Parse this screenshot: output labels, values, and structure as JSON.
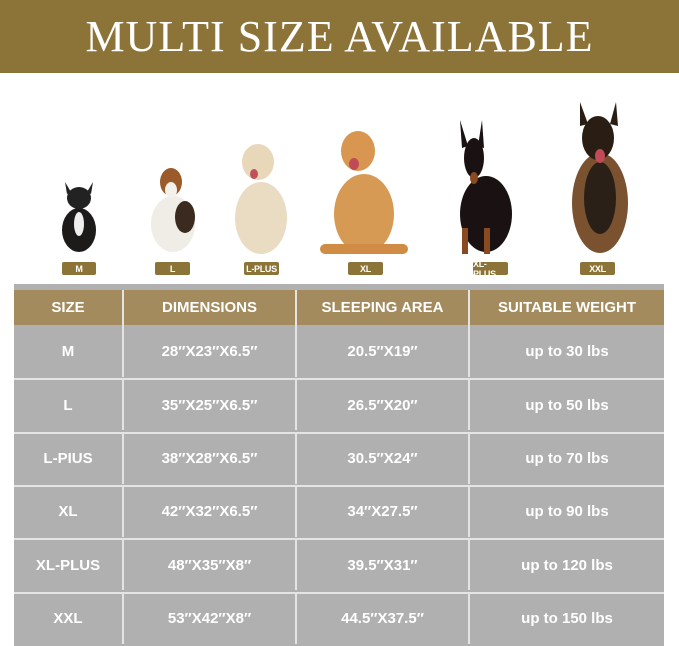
{
  "banner": {
    "title": "MULTI SIZE AVAILABLE",
    "color": "#8c7337"
  },
  "dogs": [
    {
      "label": "M",
      "icon": "french-bulldog"
    },
    {
      "label": "L",
      "icon": "beagle"
    },
    {
      "label": "L-PLUS",
      "icon": "golden-retriever-puppy"
    },
    {
      "label": "XL",
      "icon": "golden-retriever"
    },
    {
      "label": "XL-PLUS",
      "icon": "doberman"
    },
    {
      "label": "XXL",
      "icon": "german-shepherd"
    }
  ],
  "table": {
    "headers": [
      "SIZE",
      "DIMENSIONS",
      "SLEEPING AREA",
      "SUITABLE WEIGHT"
    ],
    "header_color": "#a38b5d",
    "rows": [
      [
        "M",
        "28″X23″X6.5″",
        "20.5″X19″",
        "up to 30 lbs"
      ],
      [
        "L",
        "35″X25″X6.5″",
        "26.5″X20″",
        "up to 50 lbs"
      ],
      [
        "L-PIUS",
        "38″X28″X6.5″",
        "30.5″X24″",
        "up to 70 lbs"
      ],
      [
        "XL",
        "42″X32″X6.5″",
        "34″X27.5″",
        "up to 90 lbs"
      ],
      [
        "XL-PLUS",
        "48″X35″X8″",
        "39.5″X31″",
        "up to 120 lbs"
      ],
      [
        "XXL",
        "53″X42″X8″",
        "44.5″X37.5″",
        "up to 150 lbs"
      ]
    ]
  }
}
